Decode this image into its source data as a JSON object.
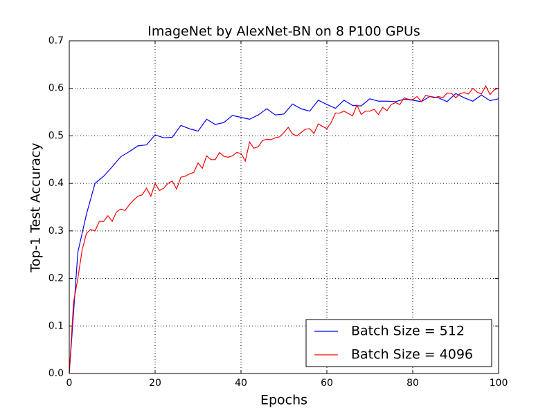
{
  "chart_data": {
    "type": "line",
    "title": "ImageNet by AlexNet-BN on 8 P100 GPUs",
    "x_label": "Epochs",
    "y_label": "Top-1 Test Accuracy",
    "xlim": [
      0,
      100
    ],
    "ylim": [
      0,
      0.7
    ],
    "xticks": [
      0,
      20,
      40,
      60,
      80,
      100
    ],
    "yticks": [
      {
        "value": 0,
        "label": "0.0"
      },
      0.1,
      0.2,
      0.3,
      0.4,
      0.5,
      0.6,
      0.7
    ],
    "grid": true,
    "legend": "lower right",
    "series": [
      {
        "name": "Batch Size = 512",
        "color": "#0000ff",
        "x": [
          0,
          2,
          4,
          6,
          8,
          10,
          12,
          14,
          16,
          18,
          20,
          22,
          24,
          26,
          28,
          30,
          32,
          34,
          36,
          38,
          40,
          42,
          44,
          46,
          48,
          50,
          52,
          54,
          56,
          58,
          60,
          62,
          64,
          66,
          68,
          70,
          72,
          74,
          76,
          78,
          80,
          82,
          84,
          86,
          88,
          90,
          92,
          94,
          96,
          98,
          100
        ],
        "values": [
          0.0,
          0.255,
          0.335,
          0.4,
          0.415,
          0.435,
          0.456,
          0.467,
          0.479,
          0.481,
          0.502,
          0.496,
          0.497,
          0.522,
          0.515,
          0.51,
          0.535,
          0.524,
          0.528,
          0.543,
          0.539,
          0.535,
          0.544,
          0.557,
          0.544,
          0.546,
          0.567,
          0.557,
          0.552,
          0.575,
          0.566,
          0.558,
          0.575,
          0.564,
          0.563,
          0.578,
          0.573,
          0.573,
          0.572,
          0.577,
          0.575,
          0.572,
          0.583,
          0.58,
          0.572,
          0.589,
          0.58,
          0.573,
          0.586,
          0.574,
          0.578
        ]
      },
      {
        "name": "Batch Size = 4096",
        "color": "#ff0000",
        "x": [
          0,
          1,
          2,
          3,
          4,
          5,
          6,
          7,
          8,
          9,
          10,
          11,
          12,
          13,
          14,
          15,
          16,
          17,
          18,
          19,
          20,
          21,
          22,
          23,
          24,
          25,
          26,
          27,
          28,
          29,
          30,
          31,
          32,
          33,
          34,
          35,
          36,
          37,
          38,
          39,
          40,
          41,
          42,
          43,
          44,
          45,
          46,
          47,
          48,
          49,
          50,
          51,
          52,
          53,
          54,
          55,
          56,
          57,
          58,
          59,
          60,
          61,
          62,
          63,
          64,
          65,
          66,
          67,
          68,
          69,
          70,
          71,
          72,
          73,
          74,
          75,
          76,
          77,
          78,
          79,
          80,
          81,
          82,
          83,
          84,
          85,
          86,
          87,
          88,
          89,
          90,
          91,
          92,
          93,
          94,
          95,
          96,
          97,
          98,
          99,
          100
        ],
        "values": [
          0.0,
          0.15,
          0.2,
          0.26,
          0.295,
          0.303,
          0.3,
          0.32,
          0.32,
          0.332,
          0.32,
          0.34,
          0.346,
          0.343,
          0.355,
          0.365,
          0.373,
          0.376,
          0.39,
          0.373,
          0.4,
          0.385,
          0.39,
          0.4,
          0.405,
          0.388,
          0.413,
          0.415,
          0.42,
          0.423,
          0.443,
          0.432,
          0.458,
          0.45,
          0.45,
          0.465,
          0.457,
          0.455,
          0.458,
          0.465,
          0.463,
          0.447,
          0.487,
          0.474,
          0.477,
          0.49,
          0.493,
          0.492,
          0.496,
          0.498,
          0.507,
          0.518,
          0.504,
          0.5,
          0.507,
          0.514,
          0.515,
          0.505,
          0.525,
          0.52,
          0.515,
          0.528,
          0.548,
          0.548,
          0.552,
          0.547,
          0.542,
          0.565,
          0.545,
          0.552,
          0.552,
          0.556,
          0.545,
          0.56,
          0.553,
          0.566,
          0.57,
          0.566,
          0.58,
          0.577,
          0.576,
          0.583,
          0.572,
          0.585,
          0.583,
          0.58,
          0.583,
          0.58,
          0.59,
          0.59,
          0.58,
          0.589,
          0.591,
          0.588,
          0.6,
          0.592,
          0.588,
          0.605,
          0.587,
          0.597,
          0.6
        ]
      }
    ]
  }
}
